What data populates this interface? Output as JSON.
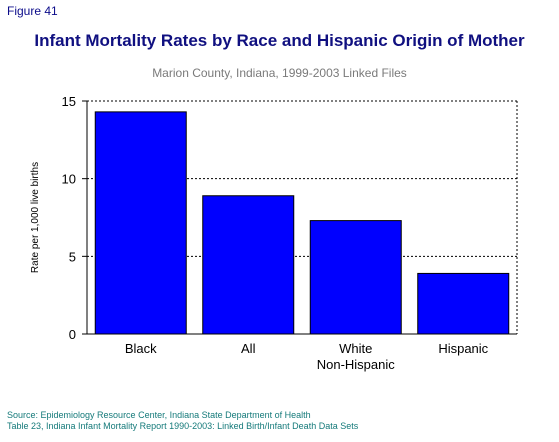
{
  "figure_label": "Figure 41",
  "source_lines": [
    "Source: Epidemiology Resource Center, Indiana State Department of Health",
    "Table 23, Indiana Infant Mortality Report 1990-2003: Linked Birth/Infant Death Data Sets"
  ],
  "colors": {
    "bar": "#0000ff",
    "title": "#101080",
    "source": "#157a7a"
  },
  "chart_data": {
    "type": "bar",
    "title": "Infant Mortality Rates by Race and Hispanic Origin of Mother",
    "subtitle": "Marion County, Indiana, 1999-2003 Linked Files",
    "xlabel": "",
    "ylabel": "Rate per 1,000 live births",
    "categories": [
      "Black",
      "All",
      "White\nNon-Hispanic",
      "Hispanic"
    ],
    "values": [
      14.3,
      8.9,
      7.3,
      3.9
    ],
    "ylim": [
      0,
      15
    ],
    "yticks": [
      "0",
      "5",
      "10",
      "15"
    ],
    "grid": true,
    "legend": "none"
  }
}
